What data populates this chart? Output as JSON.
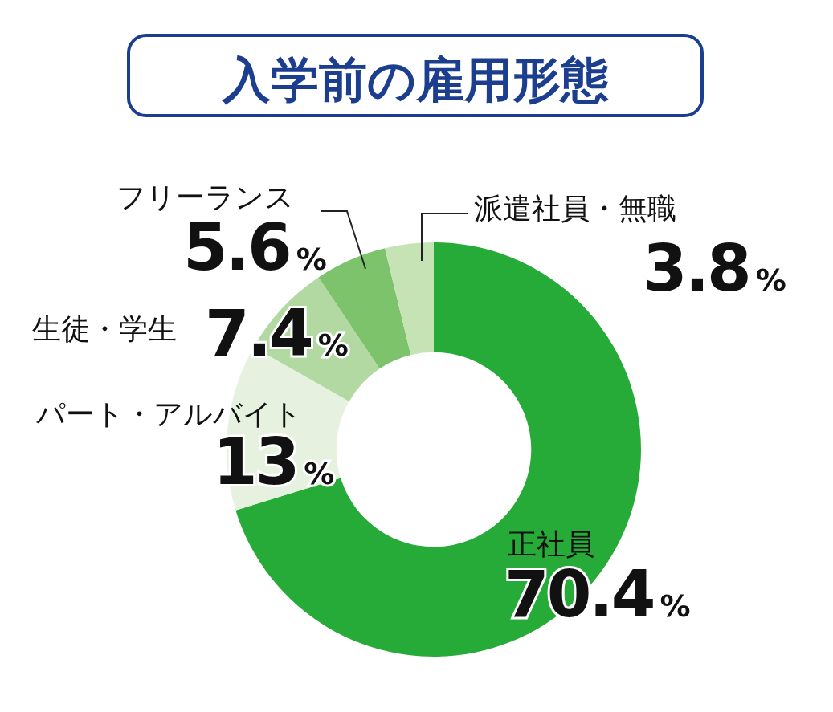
{
  "chart_data": {
    "type": "donut",
    "title": "入学前の雇用形態",
    "categories": [
      "正社員",
      "パート・アルバイト",
      "生徒・学生",
      "フリーランス",
      "派遣社員・無職"
    ],
    "values": [
      70.4,
      13,
      7.4,
      5.6,
      3.8
    ],
    "colors": [
      "#27ab38",
      "#e6f2df",
      "#b2d9a2",
      "#7cc36b",
      "#c6e3b6"
    ],
    "value_labels": [
      "70.4%",
      "13%",
      "7.4%",
      "5.6%",
      "3.8%"
    ]
  }
}
